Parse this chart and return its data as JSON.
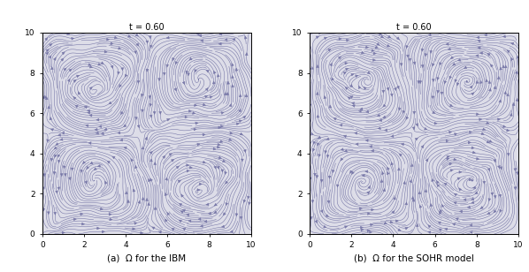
{
  "title": "t = 0.60",
  "xlim": [
    0,
    10
  ],
  "ylim": [
    0,
    10
  ],
  "xticks": [
    0,
    2,
    4,
    6,
    8,
    10
  ],
  "yticks": [
    0,
    2,
    4,
    6,
    8,
    10
  ],
  "n_grid": 100,
  "line_color": "#7878a8",
  "background_color": "#dddde8",
  "label_left": "(a)  Ω for the IBM",
  "label_right": "(b)  Ω for the SOHR model",
  "title_fontsize": 7,
  "label_fontsize": 7.5,
  "tick_fontsize": 6.5,
  "fig_width": 5.98,
  "fig_height": 3.08,
  "dpi": 100,
  "stream_density": 3.5,
  "stream_linewidth": 0.4,
  "arrowsize": 0.5
}
